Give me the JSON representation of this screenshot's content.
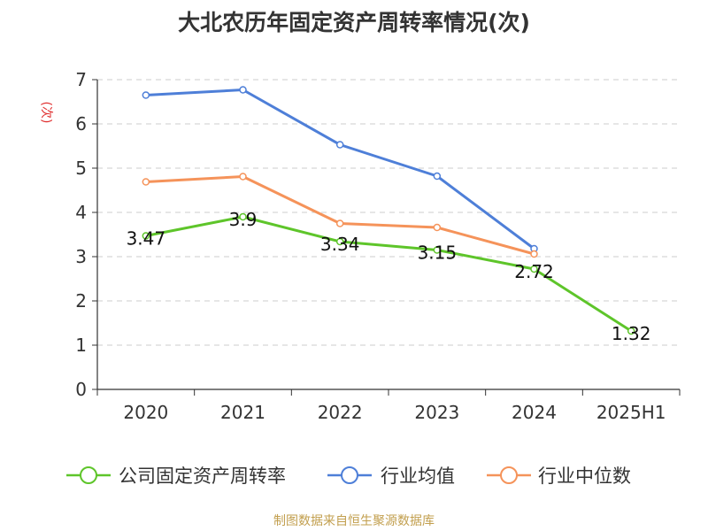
{
  "chart_data": {
    "type": "line",
    "title": "大北农历年固定资产周转率情况(次)",
    "ylabel": "(次)",
    "xlabel": "",
    "categories": [
      "2020",
      "2021",
      "2022",
      "2023",
      "2024",
      "2025H1"
    ],
    "yticks": [
      0,
      1,
      2,
      3,
      4,
      5,
      6,
      7
    ],
    "ylim": [
      0,
      7
    ],
    "grid": true,
    "legend_position": "bottom",
    "series": [
      {
        "name": "公司固定资产周转率",
        "color": "#5ec52a",
        "values": [
          3.47,
          3.9,
          3.34,
          3.15,
          2.72,
          1.32
        ],
        "labels": [
          "3.47",
          "3.9",
          "3.34",
          "3.15",
          "2.72",
          "1.32"
        ]
      },
      {
        "name": "行业均值",
        "color": "#4e7fd8",
        "values": [
          6.65,
          6.77,
          5.53,
          4.82,
          3.18,
          null
        ]
      },
      {
        "name": "行业中位数",
        "color": "#f5935a",
        "values": [
          4.69,
          4.81,
          3.75,
          3.66,
          3.06,
          null
        ]
      }
    ]
  },
  "source": "制图数据来自恒生聚源数据库"
}
